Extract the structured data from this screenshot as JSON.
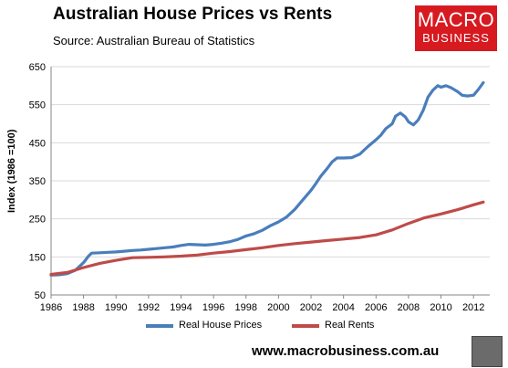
{
  "header": {
    "title": "Australian House Prices vs Rents",
    "subtitle": "Source: Australian Bureau of Statistics"
  },
  "logo": {
    "line1": "MACRO",
    "line2": "BUSINESS",
    "color": "#d71920"
  },
  "footer": {
    "website": "www.macrobusiness.com.au",
    "badge_icon": "wolf-icon"
  },
  "colors": {
    "house_prices": "#4a7ebb",
    "rents": "#be4b48",
    "grid": "#d9d9d9",
    "axis": "#868686"
  },
  "chart_data": {
    "type": "line",
    "ylabel": "Index (1986 =100)",
    "xlabel": "",
    "xlim": [
      1986,
      2013
    ],
    "ylim": [
      50,
      650
    ],
    "yticks": [
      50,
      150,
      250,
      350,
      450,
      550,
      650
    ],
    "xticks": [
      1986,
      1988,
      1990,
      1992,
      1994,
      1996,
      1998,
      2000,
      2002,
      2004,
      2006,
      2008,
      2010,
      2012
    ],
    "grid": "horizontal",
    "legend": "bottom",
    "series": [
      {
        "name": "Real House Prices",
        "color": "#4a7ebb",
        "x": [
          1986,
          1986.5,
          1987,
          1987.5,
          1988,
          1988.3,
          1988.5,
          1989,
          1989.5,
          1990,
          1990.5,
          1991,
          1991.5,
          1992,
          1992.5,
          1993,
          1993.5,
          1994,
          1994.5,
          1995,
          1995.5,
          1996,
          1996.5,
          1997,
          1997.5,
          1998,
          1998.5,
          1999,
          1999.5,
          2000,
          2000.5,
          2001,
          2001.5,
          2002,
          2002.3,
          2002.6,
          2003,
          2003.3,
          2003.6,
          2004,
          2004.5,
          2005,
          2005.5,
          2006,
          2006.3,
          2006.6,
          2007,
          2007.2,
          2007.5,
          2007.8,
          2008,
          2008.3,
          2008.6,
          2008.9,
          2009.2,
          2009.5,
          2009.8,
          2010,
          2010.3,
          2010.6,
          2011,
          2011.3,
          2011.6,
          2012,
          2012.3,
          2012.6
        ],
        "y": [
          102,
          103,
          106,
          115,
          135,
          152,
          160,
          161,
          162,
          163,
          165,
          167,
          168,
          170,
          172,
          174,
          176,
          180,
          183,
          182,
          181,
          183,
          186,
          190,
          196,
          205,
          211,
          220,
          232,
          242,
          255,
          275,
          300,
          325,
          343,
          362,
          383,
          400,
          410,
          410,
          411,
          420,
          440,
          458,
          470,
          487,
          500,
          520,
          528,
          518,
          505,
          497,
          510,
          535,
          570,
          588,
          600,
          596,
          600,
          595,
          585,
          575,
          573,
          575,
          590,
          608
        ]
      },
      {
        "name": "Real Rents",
        "color": "#be4b48",
        "x": [
          1986,
          1987,
          1988,
          1989,
          1990,
          1991,
          1992,
          1993,
          1994,
          1995,
          1996,
          1997,
          1998,
          1999,
          2000,
          2001,
          2002,
          2003,
          2004,
          2005,
          2006,
          2007,
          2008,
          2009,
          2010,
          2011,
          2012,
          2012.6
        ],
        "y": [
          104,
          109,
          122,
          133,
          141,
          148,
          149,
          150,
          152,
          155,
          160,
          164,
          169,
          174,
          180,
          185,
          189,
          193,
          197,
          201,
          208,
          221,
          238,
          253,
          263,
          274,
          287,
          294
        ]
      }
    ]
  }
}
